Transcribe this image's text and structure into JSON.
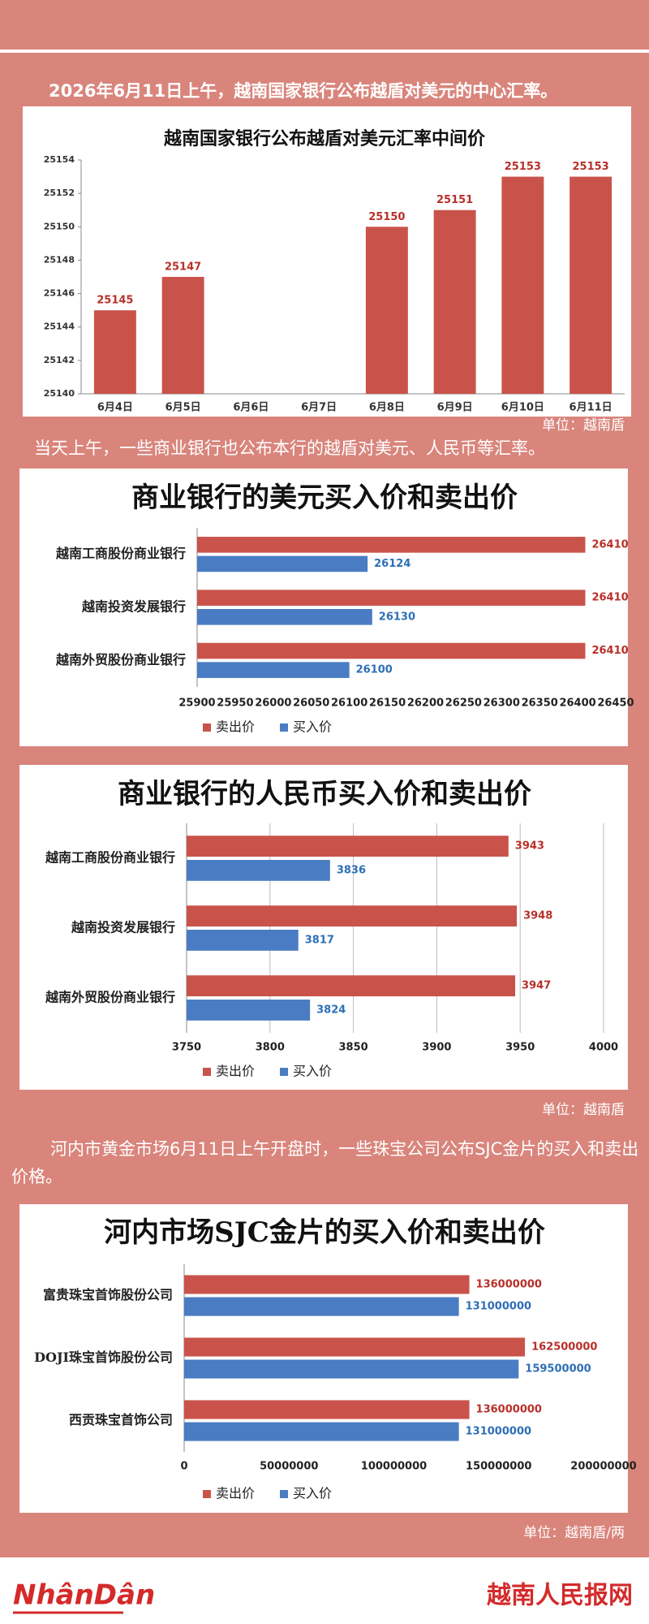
{
  "intro": [
    "2026年6月11日上午，越南国家银行公布越盾对美元的中心汇率。",
    "当天上午，一些商业银行也公布本行的越盾对美元、人民币等汇率。",
    "河内市黄金市场6月11日上午开盘时，一些珠宝公司公布SJC金片的买入和卖出价格。"
  ],
  "units": [
    "单位：越南盾",
    "单位：越南盾",
    "单位：越南盾/两"
  ],
  "footer": {
    "logo": "NhânDân",
    "site": "越南人民报网"
  },
  "chart_data": [
    {
      "type": "bar",
      "title": "越南国家银行公布越盾对美元汇率中间价",
      "categories": [
        "6月4日",
        "6月5日",
        "6月6日",
        "6月7日",
        "6月8日",
        "6月9日",
        "6月10日",
        "6月11日"
      ],
      "values": [
        25145,
        25147,
        null,
        null,
        25150,
        25151,
        25153,
        25153
      ],
      "color": "#c9534a",
      "ylim": [
        25140,
        25154
      ],
      "yticks": [
        25140,
        25142,
        25144,
        25146,
        25148,
        25150,
        25152,
        25154
      ],
      "grid": false
    },
    {
      "type": "barh",
      "title": "商业银行的美元买入价和卖出价",
      "categories": [
        "越南工商股份商业银行",
        "越南投资发展银行",
        "越南外贸股份商业银行"
      ],
      "series": [
        {
          "name": "卖出价",
          "color": "#c9534a",
          "values": [
            26410,
            26410,
            26410
          ]
        },
        {
          "name": "买入价",
          "color": "#4a7cc3",
          "values": [
            26124,
            26130,
            26100
          ]
        }
      ],
      "xlim": [
        25900,
        26450
      ],
      "xticks": [
        25900,
        25950,
        26000,
        26050,
        26100,
        26150,
        26200,
        26250,
        26300,
        26350,
        26400,
        26450
      ],
      "grid": false
    },
    {
      "type": "barh",
      "title": "商业银行的人民币买入价和卖出价",
      "categories": [
        "越南工商股份商业银行",
        "越南投资发展银行",
        "越南外贸股份商业银行"
      ],
      "series": [
        {
          "name": "卖出价",
          "color": "#c9534a",
          "values": [
            3943,
            3948,
            3947
          ]
        },
        {
          "name": "买入价",
          "color": "#4a7cc3",
          "values": [
            3836,
            3817,
            3824
          ]
        }
      ],
      "xlim": [
        3750,
        4000
      ],
      "xticks": [
        3750,
        3800,
        3850,
        3900,
        3950,
        4000
      ],
      "grid": true
    },
    {
      "type": "barh",
      "title": "河内市场SJC金片的买入价和卖出价",
      "categories": [
        "富贵珠宝首饰股份公司",
        "DOJI珠宝首饰股份公司",
        "西贡珠宝首饰公司"
      ],
      "series": [
        {
          "name": "卖出价",
          "color": "#c9534a",
          "values": [
            136000000,
            162500000,
            136000000
          ]
        },
        {
          "name": "买入价",
          "color": "#4a7cc3",
          "values": [
            131000000,
            159500000,
            131000000
          ]
        }
      ],
      "xlim": [
        0,
        200000000
      ],
      "xticks": [
        0,
        50000000,
        100000000,
        150000000,
        200000000
      ],
      "grid": false
    }
  ]
}
